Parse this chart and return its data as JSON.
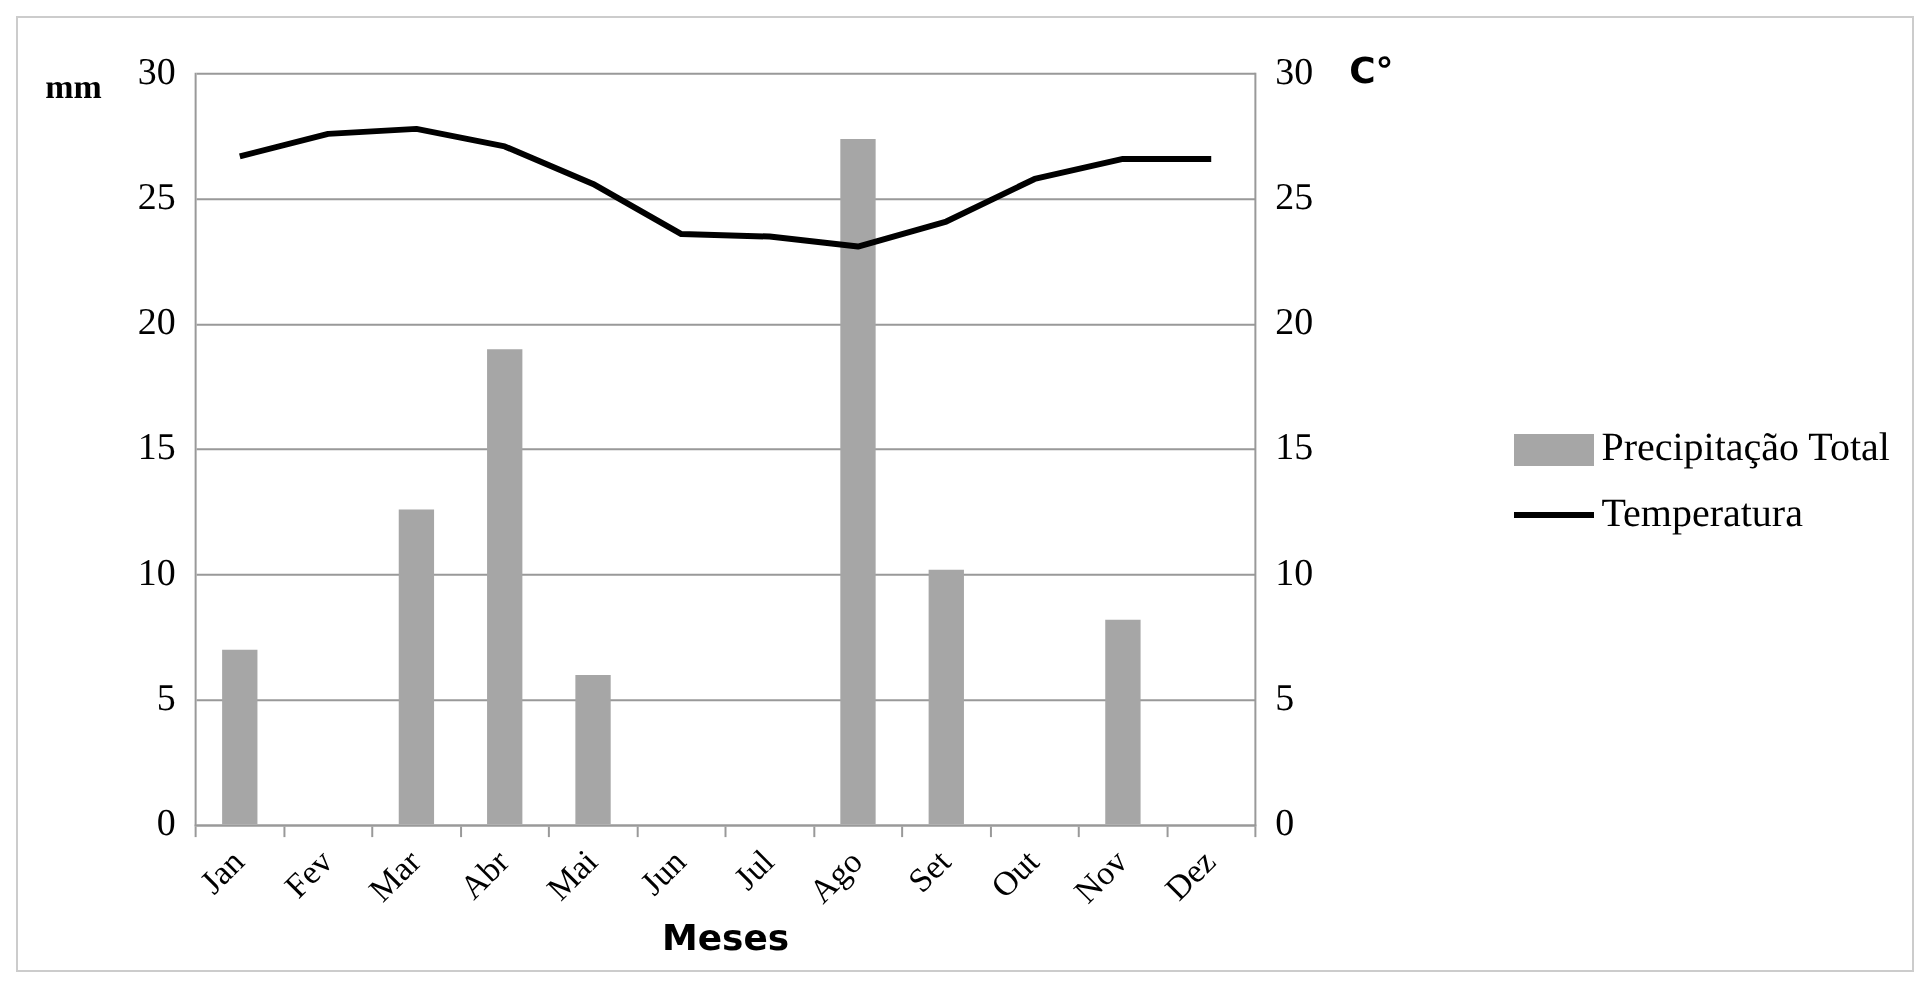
{
  "chart_data": {
    "type": "bar",
    "xlabel": "Meses",
    "ylabel": "mm",
    "y2label": "C°",
    "categories": [
      "Jan",
      "Fev",
      "Mar",
      "Abr",
      "Mai",
      "Jun",
      "Jul",
      "Ago",
      "Set",
      "Out",
      "Nov",
      "Dez"
    ],
    "series": [
      {
        "name": "Precipitação Total",
        "color": "#a6a6a6",
        "values": [
          7,
          0,
          12.6,
          19,
          6,
          0,
          0,
          27.4,
          10.2,
          0,
          8.2,
          0
        ]
      },
      {
        "name": "Temperatura",
        "type": "line",
        "axis": "y2",
        "color": "#000000",
        "values": [
          26.7,
          27.6,
          27.8,
          27.1,
          25.6,
          23.6,
          23.5,
          23.1,
          24.1,
          25.8,
          26.6,
          26.6
        ]
      }
    ],
    "ylim": [
      0,
      30
    ],
    "yticks": [
      0,
      5,
      10,
      15,
      20,
      25,
      30
    ],
    "y2lim": [
      0,
      30
    ],
    "y2ticks": [
      0,
      5,
      10,
      15,
      20,
      25,
      30
    ],
    "grid": "y",
    "legend": "right",
    "marker": "none",
    "line_style": "solid"
  }
}
